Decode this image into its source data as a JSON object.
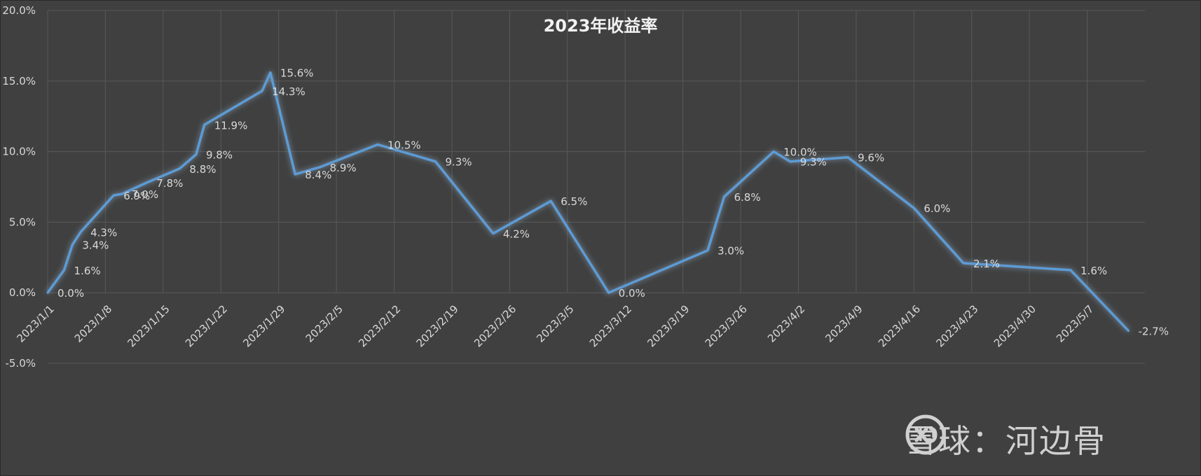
{
  "chart_data": {
    "type": "line",
    "title": "2023年收益率",
    "xlabel": "",
    "ylabel": "",
    "ylim": [
      -0.05,
      0.2
    ],
    "yticks": [
      -0.05,
      0,
      0.05,
      0.1,
      0.15,
      0.2
    ],
    "ytick_labels": [
      "-5.0%",
      "0.0%",
      "5.0%",
      "10.0%",
      "15.0%",
      "20.0%"
    ],
    "xlim": [
      "2023-01-01",
      "2023-05-14"
    ],
    "xtick_labels": [
      "2023/1/1",
      "2023/1/8",
      "2023/1/15",
      "2023/1/22",
      "2023/1/29",
      "2023/2/5",
      "2023/2/12",
      "2023/2/19",
      "2023/2/26",
      "2023/3/5",
      "2023/3/12",
      "2023/3/19",
      "2023/3/26",
      "2023/4/2",
      "2023/4/9",
      "2023/4/16",
      "2023/4/23",
      "2023/4/30",
      "2023/5/7"
    ],
    "grid": true,
    "legend": "none",
    "line_color": "#5b9bd5",
    "series": [
      {
        "points": [
          {
            "x": "2023-01-01",
            "y": 0.0,
            "label": "0.0%"
          },
          {
            "x": "2023-01-03",
            "y": 0.016,
            "label": "1.6%"
          },
          {
            "x": "2023-01-04",
            "y": 0.034,
            "label": "3.4%"
          },
          {
            "x": "2023-01-05",
            "y": 0.043,
            "label": "4.3%"
          },
          {
            "x": "2023-01-09",
            "y": 0.069,
            "label": "6.9%"
          },
          {
            "x": "2023-01-10",
            "y": 0.07,
            "label": "7.0%"
          },
          {
            "x": "2023-01-13",
            "y": 0.078,
            "label": "7.8%"
          },
          {
            "x": "2023-01-17",
            "y": 0.088,
            "label": "8.8%"
          },
          {
            "x": "2023-01-19",
            "y": 0.098,
            "label": "9.8%"
          },
          {
            "x": "2023-01-20",
            "y": 0.119,
            "label": "11.9%"
          },
          {
            "x": "2023-01-27",
            "y": 0.143,
            "label": "14.3%"
          },
          {
            "x": "2023-01-28",
            "y": 0.156,
            "label": "15.6%"
          },
          {
            "x": "2023-01-31",
            "y": 0.084,
            "label": "8.4%"
          },
          {
            "x": "2023-02-03",
            "y": 0.089,
            "label": "8.9%"
          },
          {
            "x": "2023-02-10",
            "y": 0.105,
            "label": "10.5%"
          },
          {
            "x": "2023-02-17",
            "y": 0.093,
            "label": "9.3%"
          },
          {
            "x": "2023-02-24",
            "y": 0.042,
            "label": "4.2%"
          },
          {
            "x": "2023-03-03",
            "y": 0.065,
            "label": "6.5%"
          },
          {
            "x": "2023-03-10",
            "y": 0.0,
            "label": "0.0%"
          },
          {
            "x": "2023-03-22",
            "y": 0.03,
            "label": "3.0%"
          },
          {
            "x": "2023-03-24",
            "y": 0.068,
            "label": "6.8%"
          },
          {
            "x": "2023-03-30",
            "y": 0.1,
            "label": "10.0%"
          },
          {
            "x": "2023-04-01",
            "y": 0.093,
            "label": "9.3%"
          },
          {
            "x": "2023-04-08",
            "y": 0.096,
            "label": "9.6%"
          },
          {
            "x": "2023-04-16",
            "y": 0.06,
            "label": "6.0%"
          },
          {
            "x": "2023-04-22",
            "y": 0.021,
            "label": "2.1%"
          },
          {
            "x": "2023-05-05",
            "y": 0.016,
            "label": "1.6%"
          },
          {
            "x": "2023-05-12",
            "y": -0.027,
            "label": "-2.7%"
          }
        ]
      }
    ]
  },
  "watermark": {
    "text": "雪球：河边骨",
    "icon": "xueqiu-logo-icon"
  }
}
